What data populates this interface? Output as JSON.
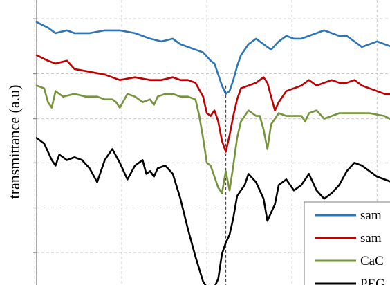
{
  "chart_data": {
    "type": "line",
    "ylabel": "transmittance (a.u)",
    "xlim": [
      0,
      100
    ],
    "ylim": [
      0,
      100
    ],
    "grid": true,
    "legend_position": "bottom-right",
    "marker_line_x": 50,
    "series": [
      {
        "name": "sam",
        "color": "#2e75b6",
        "x": [
          0,
          3,
          5,
          8,
          10,
          14,
          18,
          22,
          26,
          30,
          33,
          36,
          38,
          40,
          42,
          44,
          46,
          47,
          48,
          49,
          50,
          51,
          52,
          53,
          54,
          56,
          58,
          60,
          62,
          64,
          66,
          68,
          70,
          72,
          74,
          76,
          78,
          80,
          82,
          84,
          86,
          88,
          90,
          92,
          94,
          96,
          98,
          100
        ],
        "y": [
          94,
          92,
          90,
          91,
          90,
          90,
          91,
          91,
          90,
          88,
          87,
          88,
          86,
          85,
          84,
          83,
          80,
          79,
          75,
          71,
          68,
          69,
          73,
          78,
          82,
          86,
          88,
          86,
          84,
          87,
          89,
          88,
          88,
          89,
          90,
          91,
          90,
          89,
          89,
          87,
          85,
          86,
          87,
          86,
          85,
          84,
          80,
          76
        ]
      },
      {
        "name": "sam",
        "color": "#c00000",
        "x": [
          0,
          3,
          5,
          8,
          10,
          14,
          18,
          22,
          26,
          30,
          33,
          36,
          38,
          40,
          42,
          44,
          45,
          46,
          47,
          48,
          49,
          50,
          51,
          52,
          53,
          54,
          56,
          58,
          60,
          61,
          62,
          63,
          64,
          66,
          68,
          70,
          72,
          74,
          76,
          78,
          80,
          82,
          84,
          86,
          88,
          90,
          92,
          94,
          96,
          98,
          100
        ],
        "y": [
          82,
          80,
          79,
          80,
          77,
          76,
          75,
          73,
          74,
          73,
          73,
          74,
          73,
          73,
          72,
          67,
          61,
          60,
          62,
          58,
          51,
          47,
          53,
          60,
          66,
          70,
          71,
          72,
          74,
          72,
          67,
          62,
          65,
          69,
          70,
          71,
          73,
          71,
          72,
          73,
          72,
          72,
          73,
          71,
          70,
          69,
          68,
          68,
          67,
          64,
          62
        ]
      },
      {
        "name": "CaC",
        "color": "#77933c",
        "x": [
          0,
          2,
          3,
          4,
          5,
          7,
          10,
          13,
          16,
          18,
          20,
          21,
          22,
          24,
          26,
          28,
          30,
          31,
          32,
          34,
          36,
          38,
          40,
          42,
          43,
          44,
          45,
          46,
          47,
          48,
          49,
          50,
          51,
          52,
          53,
          54,
          55,
          56,
          58,
          59,
          60,
          61,
          62,
          64,
          66,
          68,
          70,
          71,
          72,
          74,
          76,
          78,
          80,
          84,
          88,
          92,
          96,
          100
        ],
        "y": [
          71,
          70,
          65,
          63,
          69,
          67,
          68,
          67,
          67,
          66,
          66,
          65,
          63,
          68,
          67,
          65,
          66,
          64,
          67,
          68,
          68,
          67,
          67,
          66,
          60,
          52,
          43,
          42,
          38,
          34,
          32,
          40,
          33,
          42,
          52,
          58,
          60,
          62,
          60,
          60,
          55,
          48,
          57,
          61,
          60,
          60,
          60,
          58,
          61,
          62,
          59,
          60,
          61,
          61,
          61,
          60,
          57,
          53
        ]
      },
      {
        "name": "PEG",
        "color": "#000000",
        "x": [
          0,
          2,
          4,
          5,
          6,
          8,
          10,
          12,
          14,
          16,
          17,
          18,
          19,
          20,
          22,
          24,
          26,
          28,
          29,
          30,
          31,
          32,
          34,
          36,
          38,
          40,
          42,
          44,
          46,
          47,
          48,
          49,
          50,
          51,
          52,
          53,
          54,
          55,
          56,
          58,
          60,
          61,
          62,
          63,
          64,
          66,
          68,
          70,
          72,
          74,
          76,
          78,
          80,
          82,
          84,
          86,
          88,
          90,
          92,
          94,
          96,
          98,
          100
        ],
        "y": [
          52,
          50,
          44,
          42,
          46,
          44,
          45,
          44,
          41,
          36,
          40,
          44,
          46,
          48,
          43,
          37,
          42,
          44,
          39,
          40,
          38,
          41,
          42,
          39,
          30,
          19,
          9,
          0,
          -4,
          -2,
          1,
          10,
          14,
          17,
          23,
          31,
          33,
          35,
          39,
          36,
          30,
          22,
          25,
          28,
          35,
          37,
          33,
          35,
          39,
          33,
          30,
          32,
          35,
          40,
          43,
          42,
          40,
          38,
          37,
          36,
          35,
          34,
          33
        ]
      }
    ]
  }
}
